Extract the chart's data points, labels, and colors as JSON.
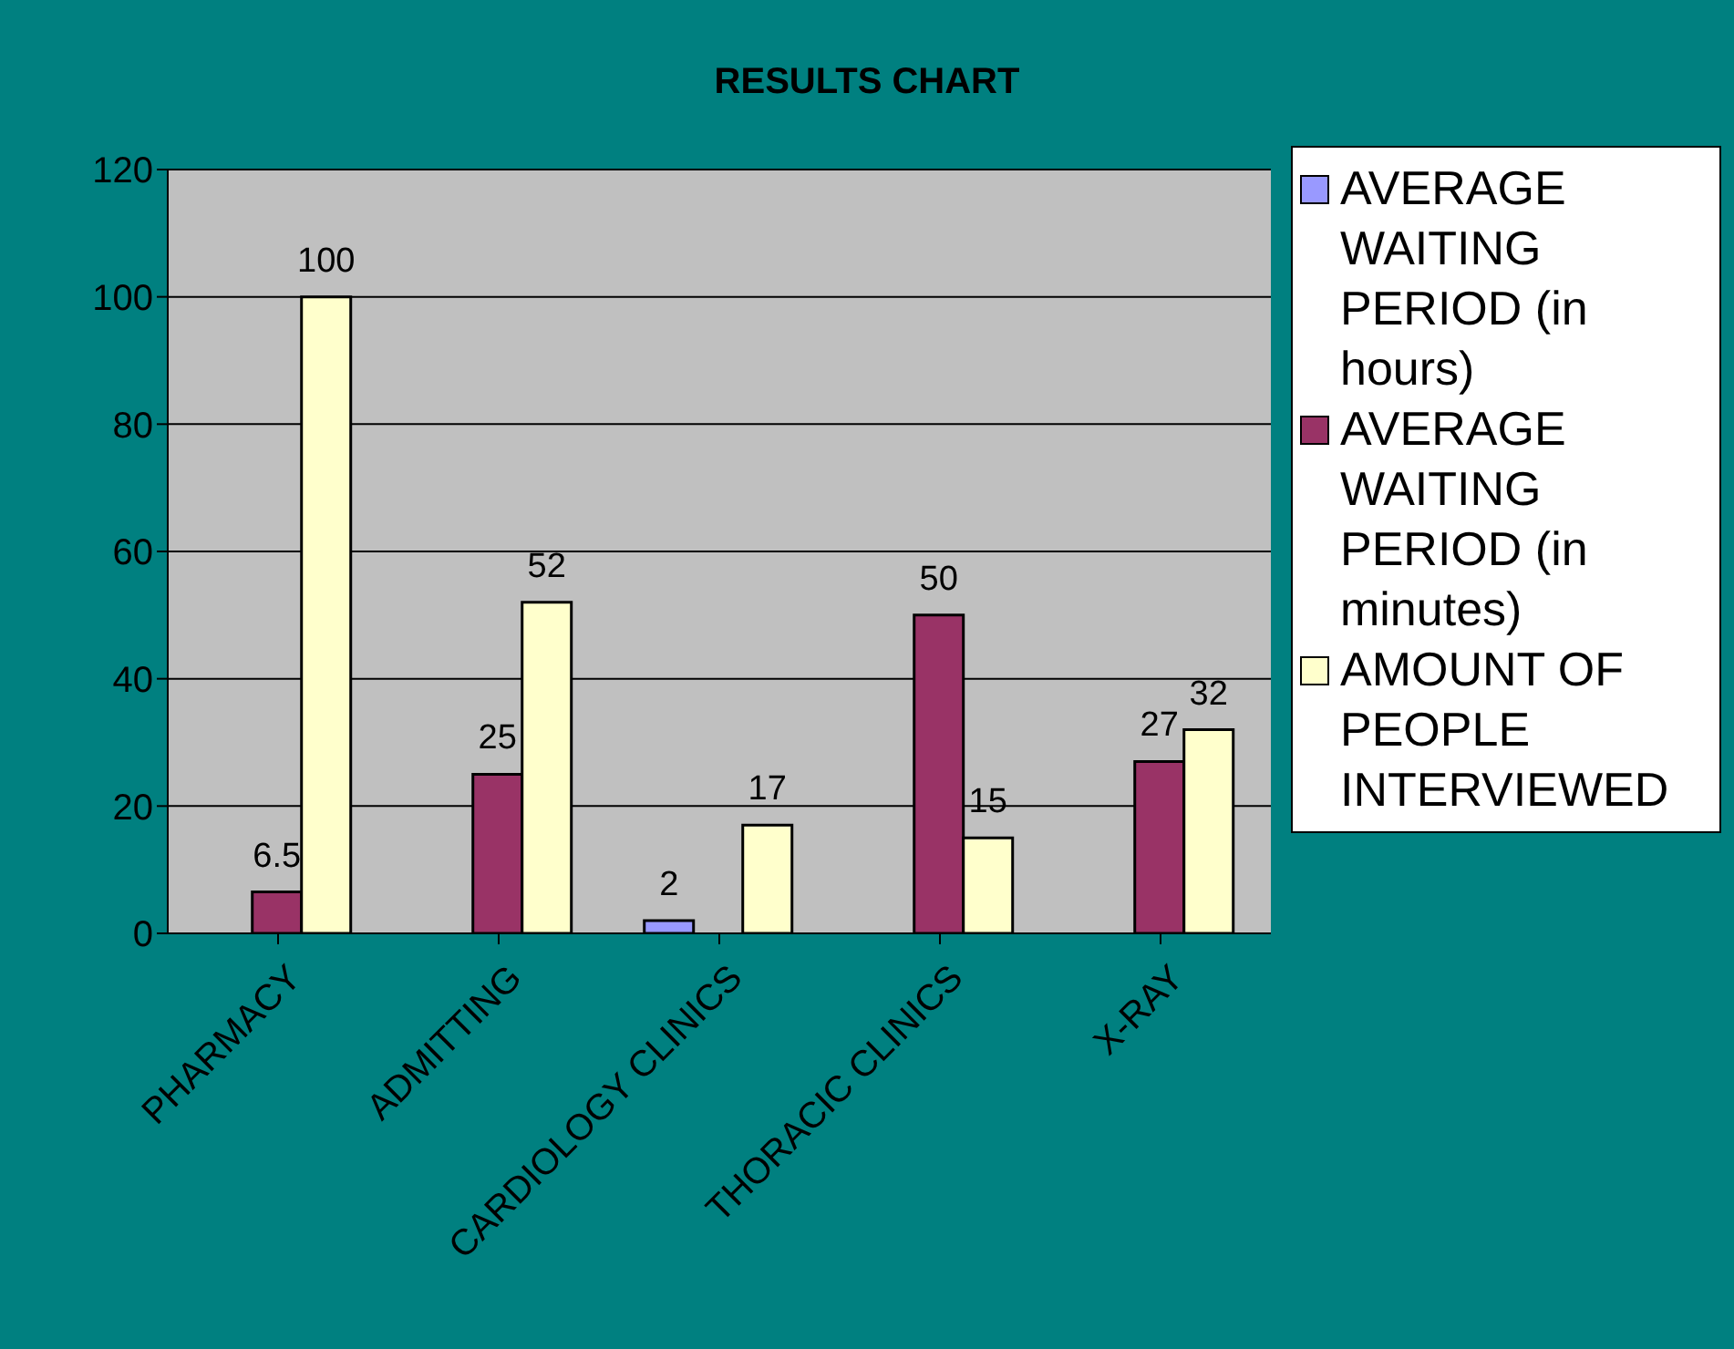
{
  "chart_data": {
    "type": "bar",
    "title": "RESULTS CHART",
    "categories": [
      "PHARMACY",
      "ADMITTING",
      "CARDIOLOGY CLINICS",
      "THORACIC CLINICS",
      "X-RAY"
    ],
    "series": [
      {
        "name": "AVERAGE WAITING PERIOD (in hours)",
        "color": "#9999ff",
        "values": [
          null,
          null,
          2,
          null,
          null
        ]
      },
      {
        "name": "AVERAGE WAITING PERIOD (in minutes)",
        "color": "#993366",
        "values": [
          6.5,
          25,
          null,
          50,
          27
        ]
      },
      {
        "name": "AMOUNT OF PEOPLE INTERVIEWED",
        "color": "#ffffcc",
        "values": [
          100,
          52,
          17,
          15,
          32
        ]
      }
    ],
    "ylim": [
      0,
      120
    ],
    "yticks": [
      0,
      20,
      40,
      60,
      80,
      100,
      120
    ],
    "grid": "y",
    "legend": "right",
    "data_labels": true
  }
}
